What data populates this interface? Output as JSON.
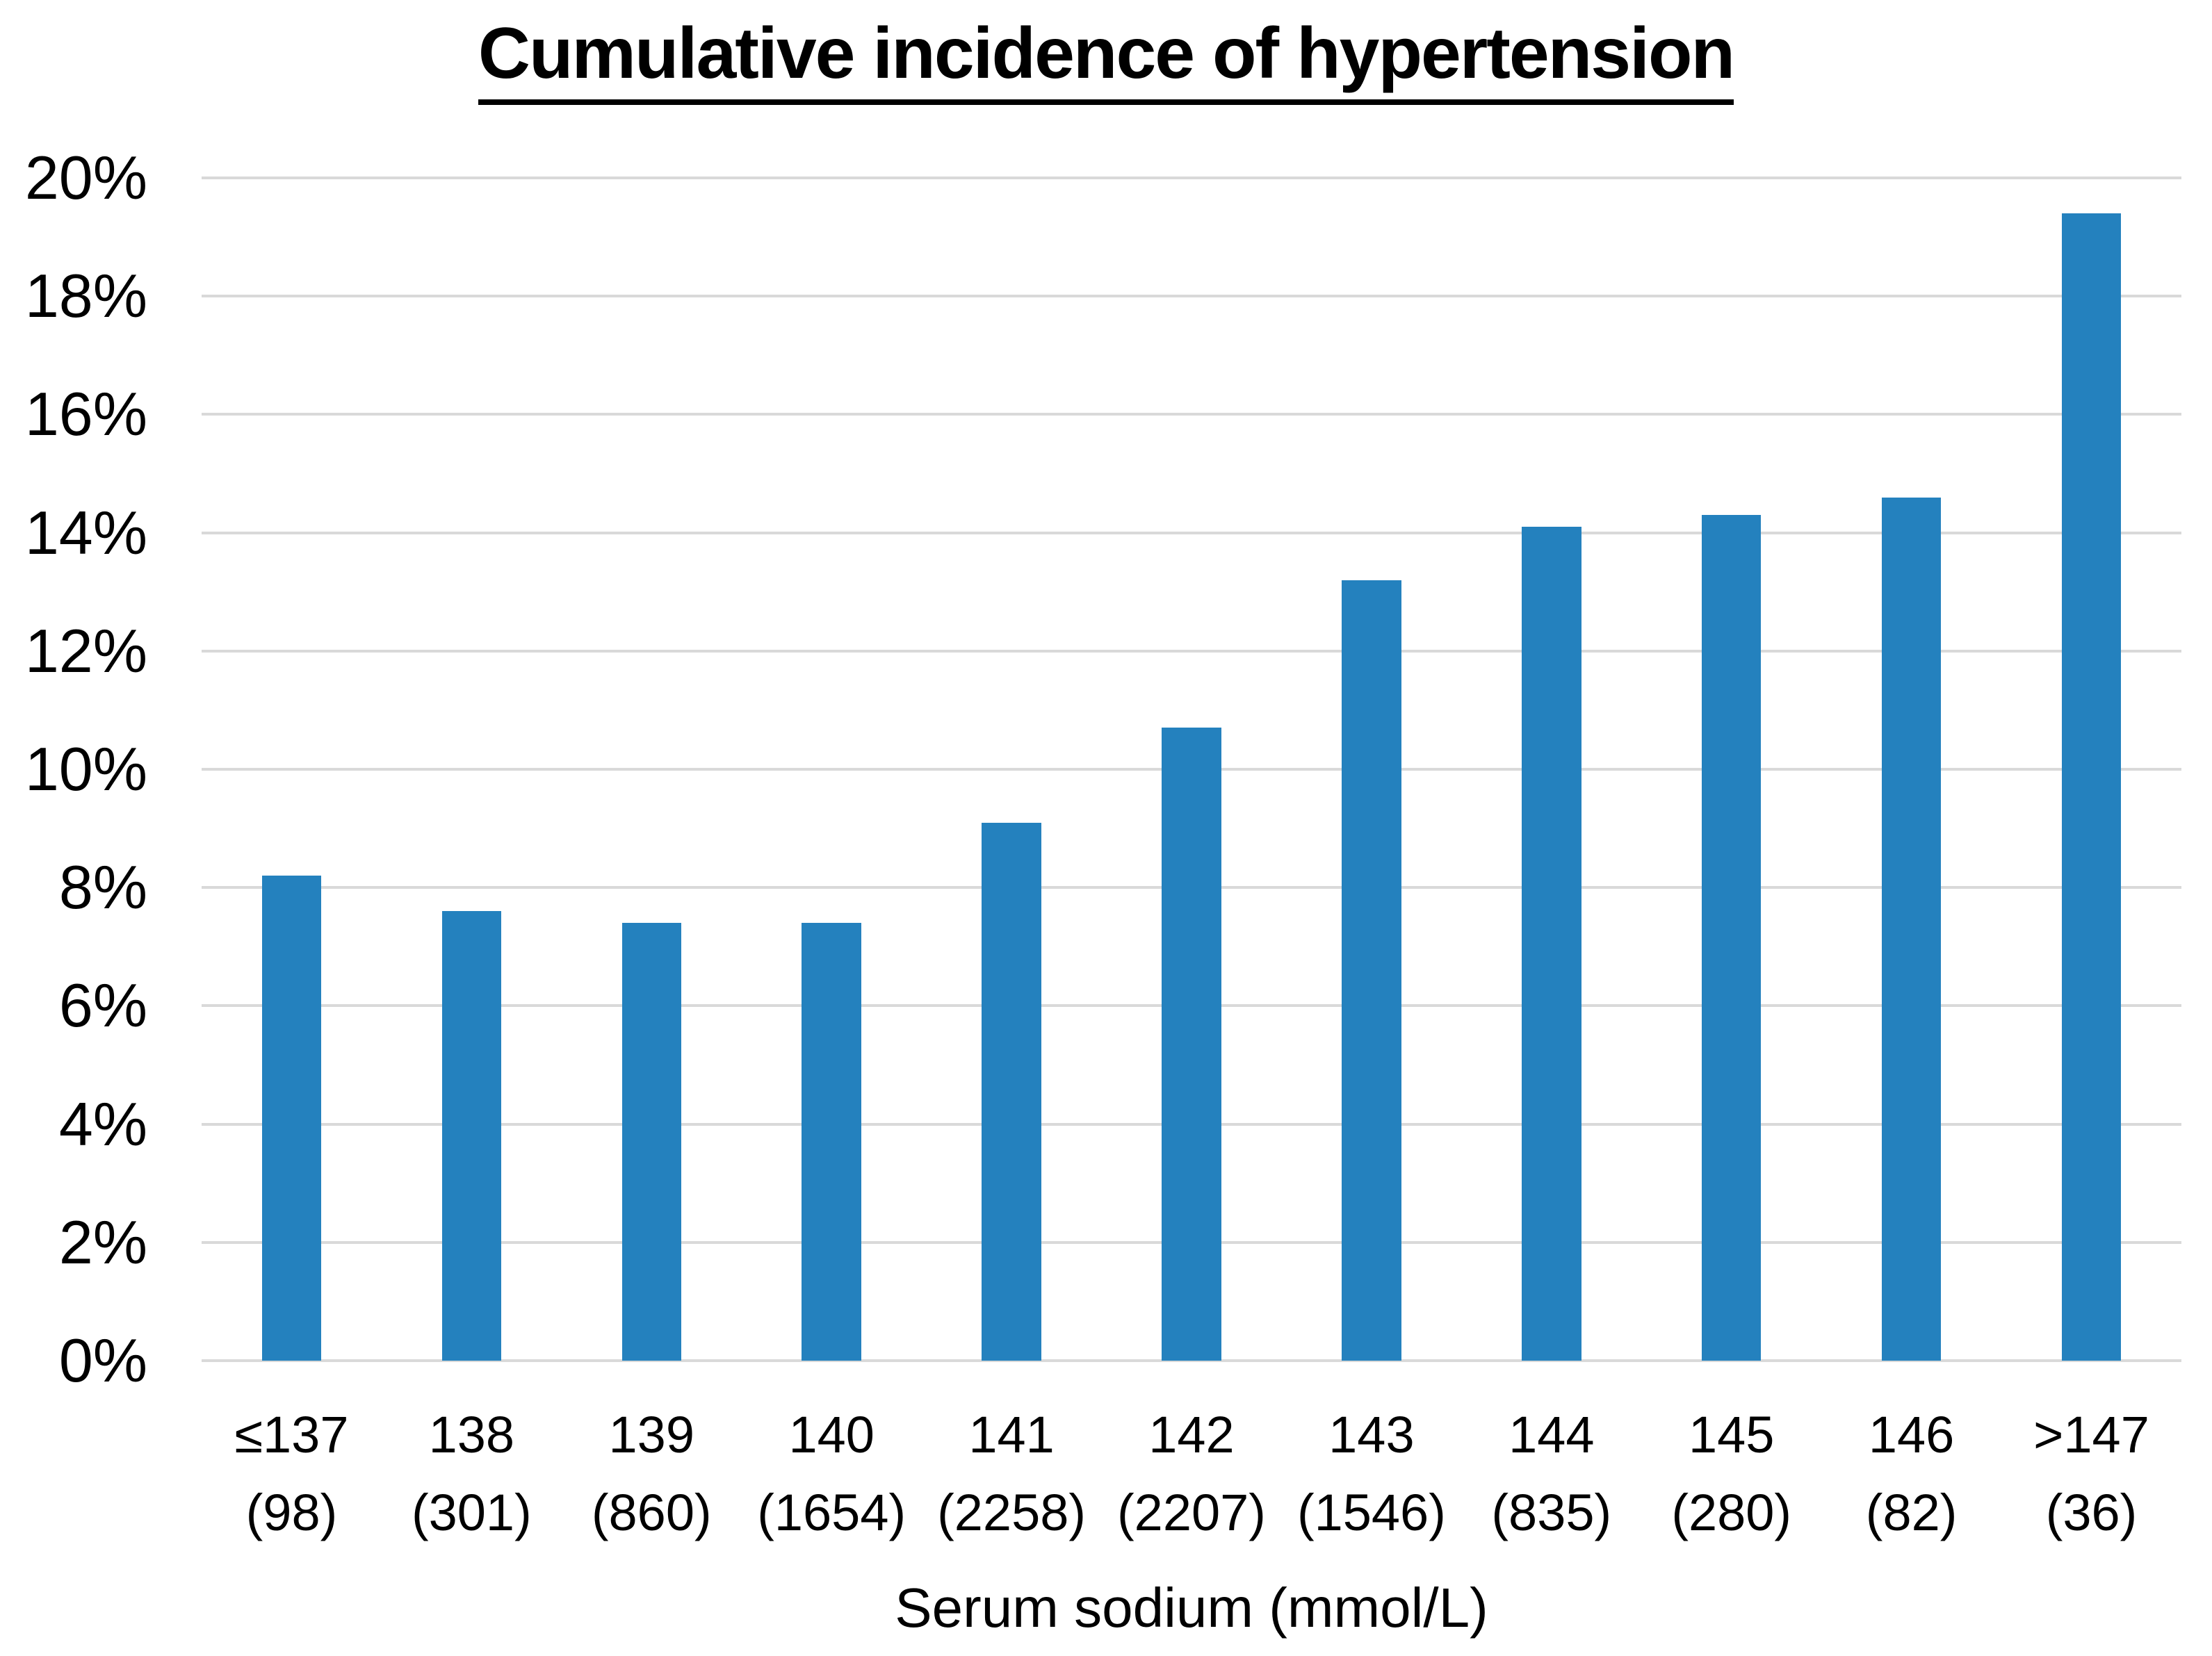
{
  "page": {
    "background": "#FFFFFF"
  },
  "colors": {
    "bar": "#2481BE",
    "gridline": "#D9D9D9",
    "text": "#000000"
  },
  "chart_data": {
    "type": "bar",
    "title": "Cumulative incidence of hypertension",
    "xlabel": "Serum sodium (mmol/L)",
    "ylabel": "",
    "categories": [
      "≤137",
      "138",
      "139",
      "140",
      "141",
      "142",
      "143",
      "144",
      "145",
      "146",
      ">147"
    ],
    "counts": [
      "(98)",
      "(301)",
      "(860)",
      "(1654)",
      "(2258)",
      "(2207)",
      "(1546)",
      "(835)",
      "(280)",
      "(82)",
      "(36)"
    ],
    "values": [
      8.2,
      7.6,
      7.4,
      7.4,
      9.1,
      10.7,
      13.2,
      14.1,
      14.3,
      14.6,
      19.4
    ],
    "unit": "%",
    "ylim": [
      0,
      20
    ],
    "ytick_step": 2,
    "y_tick_labels": [
      "0%",
      "2%",
      "4%",
      "6%",
      "8%",
      "10%",
      "12%",
      "14%",
      "16%",
      "18%",
      "20%"
    ],
    "grid": true,
    "legend": false
  }
}
